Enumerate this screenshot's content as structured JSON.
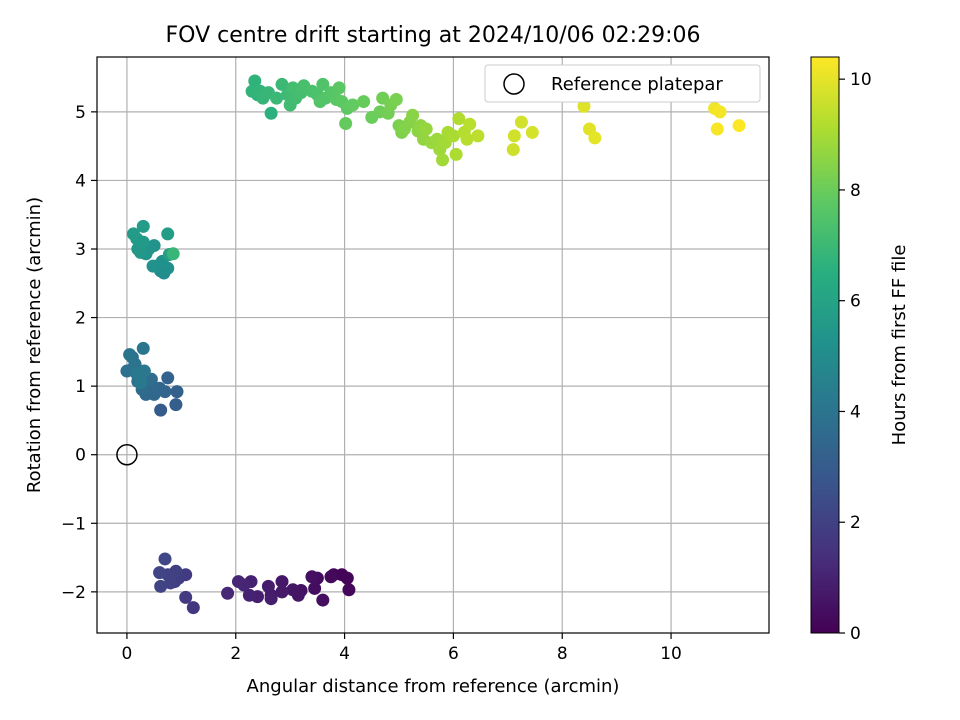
{
  "chart_data": {
    "type": "scatter",
    "title": "FOV centre drift starting at 2024/10/06 02:29:06",
    "xlabel": "Angular distance from reference (arcmin)",
    "ylabel": "Rotation from reference (arcmin)",
    "xlim": [
      -0.55,
      11.8
    ],
    "ylim": [
      -2.6,
      5.8
    ],
    "x_ticks": [
      0,
      2,
      4,
      6,
      8,
      10
    ],
    "y_ticks": [
      -2,
      -1,
      0,
      1,
      2,
      3,
      4,
      5
    ],
    "grid": true,
    "legend": {
      "position": "top-right",
      "entries": [
        "Reference platepar"
      ]
    },
    "colorbar": {
      "label": "Hours from first FF file",
      "range": [
        0,
        10.4
      ],
      "ticks": [
        0,
        2,
        4,
        6,
        8,
        10
      ],
      "colormap": "viridis"
    },
    "reference_point": {
      "label": "Reference platepar",
      "x": 0,
      "y": 0
    },
    "series": [
      {
        "points": [
          [
            3.95,
            -1.75,
            0.05
          ],
          [
            4.05,
            -1.8,
            0.1
          ],
          [
            3.8,
            -1.75,
            0.15
          ],
          [
            4.08,
            -1.97,
            0.2
          ],
          [
            3.75,
            -1.78,
            0.25
          ],
          [
            3.5,
            -1.8,
            0.3
          ],
          [
            3.45,
            -1.95,
            0.35
          ],
          [
            3.6,
            -2.12,
            0.4
          ],
          [
            3.4,
            -1.78,
            0.45
          ],
          [
            3.2,
            -1.98,
            0.5
          ],
          [
            3.15,
            -2.05,
            0.55
          ],
          [
            3.05,
            -1.97,
            0.6
          ],
          [
            2.85,
            -1.85,
            0.65
          ],
          [
            2.85,
            -2.0,
            0.7
          ],
          [
            2.65,
            -2.05,
            0.75
          ],
          [
            2.6,
            -1.92,
            0.8
          ],
          [
            2.65,
            -2.1,
            0.85
          ],
          [
            2.4,
            -2.07,
            0.9
          ],
          [
            2.28,
            -1.85,
            0.95
          ],
          [
            2.25,
            -2.05,
            1.0
          ],
          [
            2.15,
            -1.9,
            1.05
          ],
          [
            2.05,
            -1.85,
            1.1
          ],
          [
            1.85,
            -2.02,
            1.15
          ],
          [
            1.22,
            -2.23,
            1.7
          ],
          [
            1.08,
            -2.08,
            1.75
          ],
          [
            1.08,
            -1.75,
            1.8
          ],
          [
            0.95,
            -1.8,
            1.85
          ],
          [
            0.88,
            -1.85,
            1.9
          ],
          [
            0.9,
            -1.7,
            1.95
          ],
          [
            0.8,
            -1.87,
            2.0
          ],
          [
            0.75,
            -1.75,
            2.05
          ],
          [
            0.62,
            -1.92,
            2.1
          ],
          [
            0.6,
            -1.72,
            2.15
          ],
          [
            0.7,
            -1.52,
            2.2
          ],
          [
            0.62,
            0.65,
            3.0
          ],
          [
            0.9,
            0.73,
            3.1
          ],
          [
            0.92,
            0.92,
            3.2
          ],
          [
            0.75,
            1.12,
            3.3
          ],
          [
            0.7,
            0.92,
            3.35
          ],
          [
            0.6,
            0.97,
            3.4
          ],
          [
            0.5,
            0.88,
            3.45
          ],
          [
            0.45,
            1.0,
            3.5
          ],
          [
            0.35,
            0.88,
            3.55
          ],
          [
            0.28,
            0.95,
            3.6
          ],
          [
            0.45,
            1.1,
            3.65
          ],
          [
            0.3,
            1.1,
            3.7
          ],
          [
            0.2,
            1.07,
            3.75
          ],
          [
            0.1,
            1.25,
            3.8
          ],
          [
            0.0,
            1.22,
            3.85
          ],
          [
            0.1,
            1.42,
            3.9
          ],
          [
            0.15,
            1.32,
            3.95
          ],
          [
            0.05,
            1.46,
            4.0
          ],
          [
            0.3,
            1.55,
            4.05
          ],
          [
            0.32,
            1.22,
            4.1
          ],
          [
            0.18,
            1.18,
            4.15
          ],
          [
            0.25,
            1.05,
            4.2
          ],
          [
            0.68,
            2.65,
            5.0
          ],
          [
            0.62,
            2.68,
            5.05
          ],
          [
            0.55,
            2.75,
            5.1
          ],
          [
            0.75,
            2.72,
            5.15
          ],
          [
            0.65,
            2.82,
            5.2
          ],
          [
            0.48,
            2.75,
            5.25
          ],
          [
            0.5,
            3.05,
            5.3
          ],
          [
            0.4,
            3.0,
            5.35
          ],
          [
            0.35,
            2.93,
            5.4
          ],
          [
            0.25,
            2.95,
            5.45
          ],
          [
            0.2,
            3.0,
            5.5
          ],
          [
            0.3,
            3.1,
            5.55
          ],
          [
            0.18,
            3.15,
            5.6
          ],
          [
            0.12,
            3.22,
            5.65
          ],
          [
            0.3,
            3.33,
            5.7
          ],
          [
            0.75,
            3.22,
            5.75
          ],
          [
            0.78,
            2.92,
            5.8
          ],
          [
            0.85,
            2.93,
            6.9
          ],
          [
            2.65,
            4.98,
            6.6
          ],
          [
            2.4,
            5.25,
            6.65
          ],
          [
            2.35,
            5.45,
            6.7
          ],
          [
            2.3,
            5.3,
            6.75
          ],
          [
            2.45,
            5.3,
            6.8
          ],
          [
            2.5,
            5.2,
            6.85
          ],
          [
            2.6,
            5.28,
            6.9
          ],
          [
            2.75,
            5.2,
            6.95
          ],
          [
            2.85,
            5.4,
            7.0
          ],
          [
            2.95,
            5.25,
            7.05
          ],
          [
            3.0,
            5.1,
            7.1
          ],
          [
            3.1,
            5.2,
            7.15
          ],
          [
            3.05,
            5.35,
            7.2
          ],
          [
            3.2,
            5.28,
            7.25
          ],
          [
            3.25,
            5.38,
            7.3
          ],
          [
            3.4,
            5.3,
            7.35
          ],
          [
            3.5,
            5.25,
            7.4
          ],
          [
            3.6,
            5.4,
            7.45
          ],
          [
            3.55,
            5.15,
            7.5
          ],
          [
            3.65,
            5.2,
            7.55
          ],
          [
            3.75,
            5.28,
            7.6
          ],
          [
            3.85,
            5.18,
            7.65
          ],
          [
            3.9,
            5.35,
            7.7
          ],
          [
            3.95,
            5.15,
            7.75
          ],
          [
            4.05,
            5.05,
            7.8
          ],
          [
            4.15,
            5.1,
            7.85
          ],
          [
            4.02,
            4.83,
            7.9
          ],
          [
            4.35,
            5.15,
            7.95
          ],
          [
            4.5,
            4.92,
            8.0
          ],
          [
            4.65,
            5.0,
            8.05
          ],
          [
            4.7,
            5.2,
            8.1
          ],
          [
            4.8,
            4.98,
            8.15
          ],
          [
            4.85,
            5.1,
            8.2
          ],
          [
            4.95,
            5.18,
            8.25
          ],
          [
            5.0,
            4.8,
            8.3
          ],
          [
            5.05,
            4.7,
            8.35
          ],
          [
            5.1,
            4.75,
            8.4
          ],
          [
            5.2,
            4.85,
            8.45
          ],
          [
            5.25,
            4.95,
            8.5
          ],
          [
            5.35,
            4.72,
            8.55
          ],
          [
            5.4,
            4.8,
            8.6
          ],
          [
            5.45,
            4.6,
            8.65
          ],
          [
            5.5,
            4.75,
            8.7
          ],
          [
            5.6,
            4.55,
            8.75
          ],
          [
            5.7,
            4.6,
            8.8
          ],
          [
            5.75,
            4.45,
            8.85
          ],
          [
            5.8,
            4.3,
            8.9
          ],
          [
            5.85,
            4.55,
            8.95
          ],
          [
            5.9,
            4.7,
            9.0
          ],
          [
            6.0,
            4.65,
            9.05
          ],
          [
            6.05,
            4.38,
            9.1
          ],
          [
            6.1,
            4.9,
            9.15
          ],
          [
            6.2,
            4.7,
            9.2
          ],
          [
            6.25,
            4.6,
            9.25
          ],
          [
            6.3,
            4.82,
            9.3
          ],
          [
            6.45,
            4.65,
            9.35
          ],
          [
            7.1,
            4.45,
            9.6
          ],
          [
            7.12,
            4.65,
            9.65
          ],
          [
            7.25,
            4.85,
            9.7
          ],
          [
            7.45,
            4.7,
            9.75
          ],
          [
            8.4,
            5.08,
            9.9
          ],
          [
            8.5,
            4.75,
            9.95
          ],
          [
            8.6,
            4.62,
            10.0
          ],
          [
            10.8,
            5.05,
            10.2
          ],
          [
            10.9,
            5.0,
            10.25
          ],
          [
            10.85,
            4.75,
            10.3
          ],
          [
            11.25,
            4.8,
            10.4
          ]
        ]
      }
    ]
  }
}
